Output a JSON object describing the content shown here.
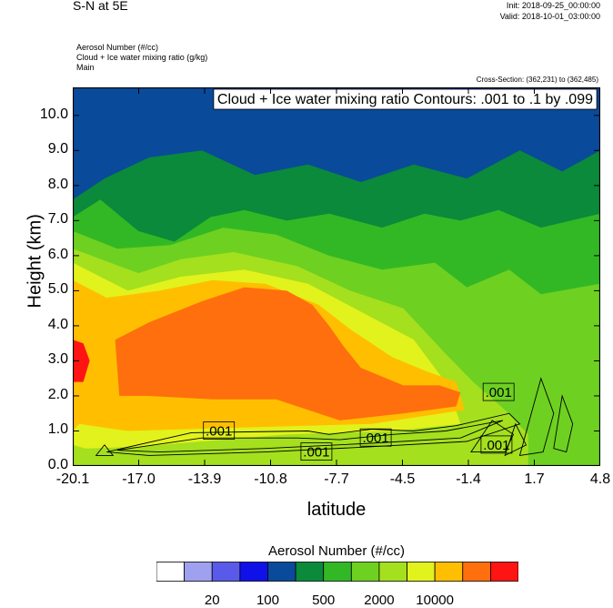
{
  "header": {
    "title": "S-N at 5E",
    "init": "Init: 2018-09-25_00:00:00",
    "valid": "Valid: 2018-10-01_03:00:00",
    "var1": "Aerosol Number   (#/cc)",
    "var2": "Cloud + Ice water mixing ratio   (g/kg)",
    "var3": "Main",
    "cross_section": "Cross-Section: (362,231) to (362,485)"
  },
  "chart_data": {
    "type": "heatmap",
    "title": "Cloud + Ice water mixing ratio Contours: .001 to .1 by .099",
    "xlabel": "latitude",
    "ylabel": "Height (km)",
    "xlim": [
      -20.1,
      4.8
    ],
    "ylim": [
      0.0,
      10.8
    ],
    "x_ticks": [
      "-20.1",
      "-17.0",
      "-13.9",
      "-10.8",
      "-7.7",
      "-4.5",
      "-1.4",
      "1.7",
      "4.8"
    ],
    "y_ticks": [
      "0.0",
      "1.0",
      "2.0",
      "3.0",
      "4.0",
      "5.0",
      "6.0",
      "7.0",
      "8.0",
      "9.0",
      "10.0"
    ],
    "contour_labels": [
      {
        "text": ".001",
        "lat": -13.2,
        "z": 1.0
      },
      {
        "text": ".001",
        "lat": -8.6,
        "z": 0.4
      },
      {
        "text": ".001",
        "lat": -5.8,
        "z": 0.8
      },
      {
        "text": ".001",
        "lat": 0.0,
        "z": 2.1
      },
      {
        "text": ".001",
        "lat": -0.1,
        "z": 0.6
      }
    ],
    "colorbar": {
      "title": "Aerosol Number  (#/cc)",
      "colors": [
        "#ffffff",
        "#a0a0f0",
        "#5a5aea",
        "#1010e8",
        "#0a4a9a",
        "#0a8a3a",
        "#33b825",
        "#6ed021",
        "#a4e01e",
        "#e2f21c",
        "#ffbf00",
        "#ff6f0d",
        "#ff1414"
      ],
      "labels": [
        "20",
        "100",
        "500",
        "2000",
        "10000"
      ]
    }
  }
}
